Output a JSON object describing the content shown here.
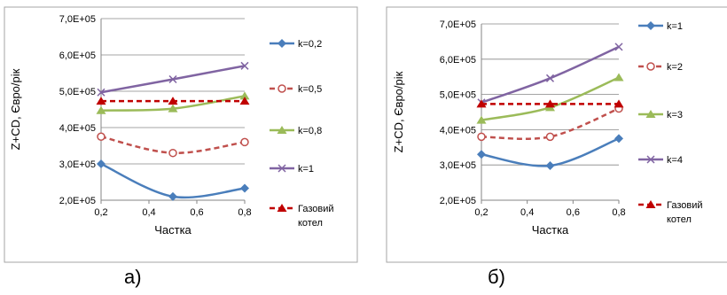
{
  "chart_data": [
    {
      "type": "line",
      "panel_label": "а)",
      "xlabel": "Частка",
      "ylabel": "Z+CD, Євро/рік",
      "x": [
        0.2,
        0.5,
        0.8
      ],
      "xlim": [
        0.2,
        0.8
      ],
      "xticks": [
        "0,2",
        "0,4",
        "0,6",
        "0,8"
      ],
      "ylim": [
        200000,
        700000
      ],
      "yticks": [
        "2,0E+05",
        "3,0E+05",
        "4,0E+05",
        "5,0E+05",
        "6,0E+05",
        "7,0E+05"
      ],
      "grid": true,
      "legend_position": "right",
      "series": [
        {
          "name": "k=0,2",
          "values": [
            300000,
            210000,
            233000
          ],
          "color": "#4a7ebb",
          "marker": "diamond",
          "dash": false,
          "smooth": true
        },
        {
          "name": "k=0,5",
          "values": [
            375000,
            330000,
            360000
          ],
          "color": "#c0504d",
          "marker": "circle-open",
          "dash": true,
          "smooth": true
        },
        {
          "name": "k=0,8",
          "values": [
            447000,
            452000,
            487000
          ],
          "color": "#9bbb59",
          "marker": "triangle",
          "dash": false,
          "smooth": true
        },
        {
          "name": "k=1",
          "values": [
            497000,
            533000,
            570000
          ],
          "color": "#8064a2",
          "marker": "x",
          "dash": false,
          "smooth": true
        },
        {
          "name": "Газовий котел",
          "values": [
            473000,
            473000,
            473000
          ],
          "color": "#c00000",
          "marker": "triangle",
          "dash": true,
          "smooth": false
        }
      ]
    },
    {
      "type": "line",
      "panel_label": "б)",
      "xlabel": "Частка",
      "ylabel": "Z+CD, Євро/рік",
      "x": [
        0.2,
        0.5,
        0.8
      ],
      "xlim": [
        0.2,
        0.8
      ],
      "xticks": [
        "0,2",
        "0,4",
        "0,6",
        "0,8"
      ],
      "ylim": [
        200000,
        700000
      ],
      "yticks": [
        "2,0E+05",
        "3,0E+05",
        "4,0E+05",
        "5,0E+05",
        "6,0E+05",
        "7,0E+05"
      ],
      "grid": true,
      "legend_position": "right",
      "series": [
        {
          "name": "k=1",
          "values": [
            330000,
            298000,
            375000
          ],
          "color": "#4a7ebb",
          "marker": "diamond",
          "dash": false,
          "smooth": true
        },
        {
          "name": "k=2",
          "values": [
            380000,
            380000,
            460000
          ],
          "color": "#c0504d",
          "marker": "circle-open",
          "dash": true,
          "smooth": true
        },
        {
          "name": "k=3",
          "values": [
            427000,
            463000,
            548000
          ],
          "color": "#9bbb59",
          "marker": "triangle",
          "dash": false,
          "smooth": true
        },
        {
          "name": "k=4",
          "values": [
            477000,
            546000,
            635000
          ],
          "color": "#8064a2",
          "marker": "x",
          "dash": false,
          "smooth": true
        },
        {
          "name": "Газовий котел",
          "values": [
            473000,
            473000,
            473000
          ],
          "color": "#c00000",
          "marker": "triangle",
          "dash": true,
          "smooth": false
        }
      ]
    }
  ]
}
